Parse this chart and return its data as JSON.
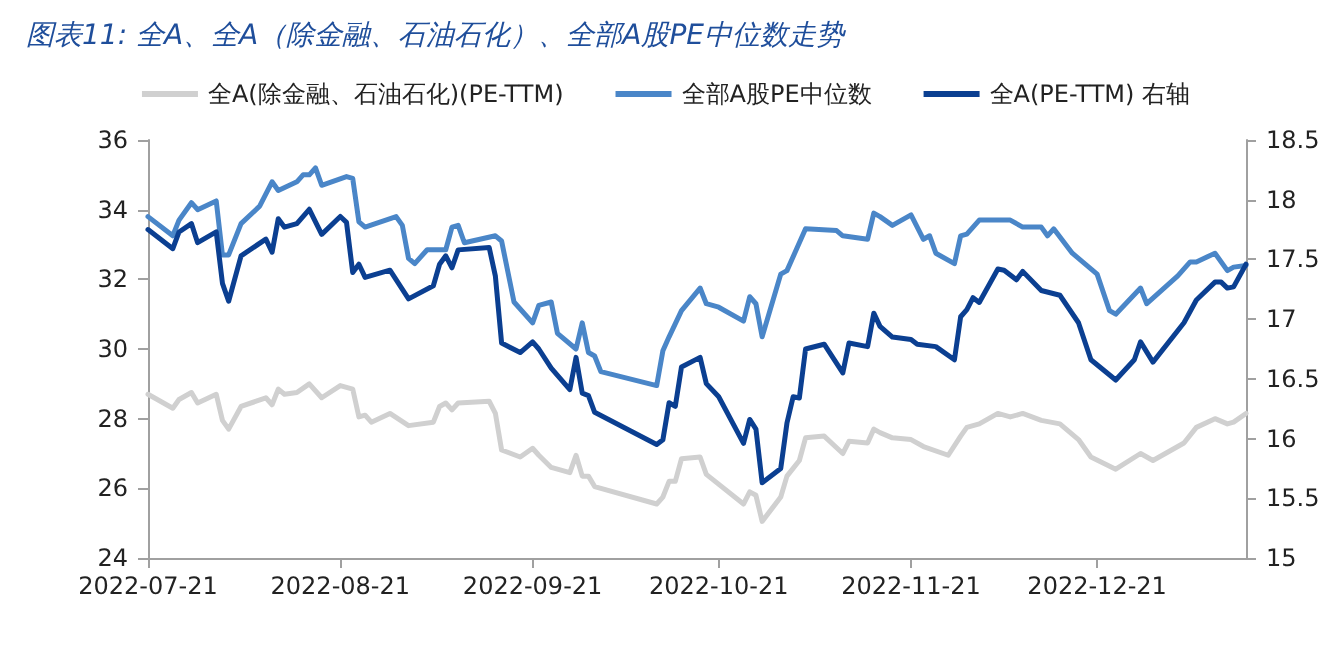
{
  "chart_data": {
    "type": "line",
    "title": "图表11: 全A、全A（除金融、石油石化）、全部A股PE中位数走势",
    "xlim": [
      "2022-07-21",
      "2023-01-14"
    ],
    "xticks": [
      "2022-07-21",
      "2022-08-21",
      "2022-09-21",
      "2022-10-21",
      "2022-11-21",
      "2022-12-21"
    ],
    "ylim": [
      24,
      36
    ],
    "yticks": [
      24,
      26,
      28,
      30,
      32,
      34,
      36
    ],
    "y2lim": [
      15,
      18.5
    ],
    "y2ticks": [
      15,
      15.5,
      16,
      16.5,
      17,
      17.5,
      18,
      18.5
    ],
    "grid": false,
    "legend": "top",
    "marker": "none",
    "line_style": "solid",
    "series": [
      {
        "name": "全A(除金融、石油石化)(PE-TTM)",
        "color": "#d0d0d0",
        "x": [
          "2022-07-21",
          "2022-07-25",
          "2022-07-26",
          "2022-07-28",
          "2022-07-29",
          "2022-08-01",
          "2022-08-02",
          "2022-08-03",
          "2022-08-05",
          "2022-08-09",
          "2022-08-10",
          "2022-08-11",
          "2022-08-12",
          "2022-08-14",
          "2022-08-16",
          "2022-08-18",
          "2022-08-21",
          "2022-08-23",
          "2022-08-24",
          "2022-08-25",
          "2022-08-26",
          "2022-08-29",
          "2022-09-01",
          "2022-09-05",
          "2022-09-06",
          "2022-09-07",
          "2022-09-08",
          "2022-09-09",
          "2022-09-14",
          "2022-09-15",
          "2022-09-16",
          "2022-09-19",
          "2022-09-21",
          "2022-09-22",
          "2022-09-24",
          "2022-09-27",
          "2022-09-28",
          "2022-09-29",
          "2022-09-30",
          "2022-10-01",
          "2022-10-11",
          "2022-10-12",
          "2022-10-13",
          "2022-10-14",
          "2022-10-15",
          "2022-10-18",
          "2022-10-19",
          "2022-10-25",
          "2022-10-26",
          "2022-10-27",
          "2022-10-28",
          "2022-10-31",
          "2022-11-01",
          "2022-11-03",
          "2022-11-04",
          "2022-11-07",
          "2022-11-10",
          "2022-11-11",
          "2022-11-14",
          "2022-11-15",
          "2022-11-16",
          "2022-11-18",
          "2022-11-21",
          "2022-11-23",
          "2022-11-27",
          "2022-11-29",
          "2022-11-30",
          "2022-12-02",
          "2022-12-05",
          "2022-12-07",
          "2022-12-09",
          "2022-12-12",
          "2022-12-15",
          "2022-12-18",
          "2022-12-20",
          "2022-12-24",
          "2022-12-28",
          "2022-12-30",
          "2023-01-04",
          "2023-01-06",
          "2023-01-09",
          "2023-01-11",
          "2023-01-12",
          "2023-01-14"
        ],
        "values": [
          28.7,
          28.3,
          28.55,
          28.75,
          28.45,
          28.7,
          27.95,
          27.7,
          28.35,
          28.6,
          28.4,
          28.85,
          28.7,
          28.75,
          29.0,
          28.6,
          28.95,
          28.85,
          28.05,
          28.1,
          27.9,
          28.15,
          27.8,
          27.9,
          28.35,
          28.45,
          28.25,
          28.45,
          28.5,
          28.15,
          27.1,
          26.9,
          27.15,
          26.95,
          26.6,
          26.45,
          26.95,
          26.35,
          26.35,
          26.05,
          25.55,
          25.75,
          26.2,
          26.2,
          26.85,
          26.9,
          26.4,
          25.55,
          25.9,
          25.8,
          25.05,
          25.75,
          26.35,
          26.8,
          27.45,
          27.5,
          27.0,
          27.35,
          27.3,
          27.7,
          27.6,
          27.45,
          27.4,
          27.2,
          26.95,
          27.5,
          27.75,
          27.85,
          28.15,
          28.05,
          28.15,
          27.95,
          27.85,
          27.4,
          26.9,
          26.55,
          27.0,
          26.8,
          27.3,
          27.75,
          28.0,
          27.85,
          27.9,
          28.15
        ]
      },
      {
        "name": "全部A股PE中位数",
        "color": "#4a86c8",
        "x": [
          "2022-07-21",
          "2022-07-25",
          "2022-07-26",
          "2022-07-28",
          "2022-07-29",
          "2022-08-01",
          "2022-08-02",
          "2022-08-03",
          "2022-08-05",
          "2022-08-08",
          "2022-08-10",
          "2022-08-11",
          "2022-08-14",
          "2022-08-15",
          "2022-08-16",
          "2022-08-17",
          "2022-08-18",
          "2022-08-22",
          "2022-08-23",
          "2022-08-24",
          "2022-08-25",
          "2022-08-30",
          "2022-08-31",
          "2022-09-01",
          "2022-09-02",
          "2022-09-04",
          "2022-09-07",
          "2022-09-08",
          "2022-09-09",
          "2022-09-10",
          "2022-09-15",
          "2022-09-16",
          "2022-09-18",
          "2022-09-21",
          "2022-09-22",
          "2022-09-24",
          "2022-09-25",
          "2022-09-28",
          "2022-09-29",
          "2022-09-30",
          "2022-10-01",
          "2022-10-02",
          "2022-10-11",
          "2022-10-12",
          "2022-10-13",
          "2022-10-15",
          "2022-10-18",
          "2022-10-19",
          "2022-10-21",
          "2022-10-25",
          "2022-10-26",
          "2022-10-27",
          "2022-10-28",
          "2022-10-31",
          "2022-11-01",
          "2022-11-04",
          "2022-11-09",
          "2022-11-10",
          "2022-11-14",
          "2022-11-15",
          "2022-11-16",
          "2022-11-18",
          "2022-11-21",
          "2022-11-23",
          "2022-11-24",
          "2022-11-25",
          "2022-11-28",
          "2022-11-29",
          "2022-11-30",
          "2022-12-02",
          "2022-12-07",
          "2022-12-09",
          "2022-12-12",
          "2022-12-13",
          "2022-12-14",
          "2022-12-17",
          "2022-12-21",
          "2022-12-23",
          "2022-12-24",
          "2022-12-28",
          "2022-12-29",
          "2023-01-03",
          "2023-01-05",
          "2023-01-06",
          "2023-01-09",
          "2023-01-11",
          "2023-01-12",
          "2023-01-14"
        ],
        "values": [
          33.8,
          33.25,
          33.7,
          34.2,
          34.0,
          34.25,
          32.7,
          32.7,
          33.6,
          34.1,
          34.8,
          34.55,
          34.8,
          35.0,
          35.0,
          35.2,
          34.7,
          34.95,
          34.9,
          33.65,
          33.5,
          33.8,
          33.55,
          32.6,
          32.45,
          32.85,
          32.85,
          33.5,
          33.55,
          33.05,
          33.25,
          33.1,
          31.35,
          30.75,
          31.25,
          31.35,
          30.45,
          30.0,
          30.75,
          29.9,
          29.8,
          29.35,
          28.95,
          29.95,
          30.35,
          31.1,
          31.75,
          31.3,
          31.2,
          30.8,
          31.5,
          31.3,
          30.35,
          32.15,
          32.25,
          33.45,
          33.4,
          33.25,
          33.15,
          33.9,
          33.8,
          33.55,
          33.85,
          33.15,
          33.25,
          32.75,
          32.45,
          33.25,
          33.3,
          33.7,
          33.7,
          33.5,
          33.5,
          33.25,
          33.45,
          32.75,
          32.15,
          31.1,
          31.0,
          31.75,
          31.3,
          32.1,
          32.5,
          32.5,
          32.75,
          32.25,
          32.35,
          32.4
        ]
      },
      {
        "name": "全A(PE-TTM) 右轴",
        "color": "#0b3f91",
        "axis": "y2",
        "x": [
          "2022-07-21",
          "2022-07-25",
          "2022-07-26",
          "2022-07-28",
          "2022-07-29",
          "2022-08-01",
          "2022-08-02",
          "2022-08-03",
          "2022-08-05",
          "2022-08-09",
          "2022-08-10",
          "2022-08-11",
          "2022-08-12",
          "2022-08-14",
          "2022-08-16",
          "2022-08-18",
          "2022-08-21",
          "2022-08-22",
          "2022-08-23",
          "2022-08-24",
          "2022-08-25",
          "2022-08-29",
          "2022-09-01",
          "2022-09-05",
          "2022-09-06",
          "2022-09-07",
          "2022-09-08",
          "2022-09-09",
          "2022-09-14",
          "2022-09-15",
          "2022-09-16",
          "2022-09-19",
          "2022-09-21",
          "2022-09-22",
          "2022-09-24",
          "2022-09-27",
          "2022-09-28",
          "2022-09-29",
          "2022-09-30",
          "2022-10-01",
          "2022-10-11",
          "2022-10-12",
          "2022-10-13",
          "2022-10-14",
          "2022-10-15",
          "2022-10-18",
          "2022-10-19",
          "2022-10-21",
          "2022-10-25",
          "2022-10-26",
          "2022-10-27",
          "2022-10-28",
          "2022-10-31",
          "2022-11-01",
          "2022-11-02",
          "2022-11-03",
          "2022-11-04",
          "2022-11-07",
          "2022-11-10",
          "2022-11-11",
          "2022-11-14",
          "2022-11-15",
          "2022-11-16",
          "2022-11-18",
          "2022-11-21",
          "2022-11-22",
          "2022-11-25",
          "2022-11-28",
          "2022-11-29",
          "2022-11-30",
          "2022-12-01",
          "2022-12-02",
          "2022-12-05",
          "2022-12-06",
          "2022-12-08",
          "2022-12-09",
          "2022-12-12",
          "2022-12-15",
          "2022-12-18",
          "2022-12-20",
          "2022-12-24",
          "2022-12-27",
          "2022-12-28",
          "2022-12-30",
          "2023-01-04",
          "2023-01-06",
          "2023-01-09",
          "2023-01-10",
          "2023-01-11",
          "2023-01-12",
          "2023-01-14"
        ],
        "values": [
          17.75,
          17.59,
          17.73,
          17.8,
          17.64,
          17.73,
          17.3,
          17.15,
          17.53,
          17.67,
          17.56,
          17.84,
          17.77,
          17.8,
          17.92,
          17.71,
          17.86,
          17.81,
          17.39,
          17.46,
          17.35,
          17.41,
          17.17,
          17.28,
          17.46,
          17.53,
          17.43,
          17.58,
          17.6,
          17.36,
          16.8,
          16.72,
          16.81,
          16.75,
          16.59,
          16.41,
          16.68,
          16.38,
          16.36,
          16.22,
          15.95,
          15.99,
          16.3,
          16.27,
          16.6,
          16.68,
          16.46,
          16.35,
          15.96,
          16.16,
          16.08,
          15.63,
          15.75,
          16.13,
          16.35,
          16.34,
          16.75,
          16.79,
          16.55,
          16.8,
          16.77,
          17.05,
          16.94,
          16.85,
          16.83,
          16.79,
          16.77,
          16.66,
          17.02,
          17.08,
          17.18,
          17.14,
          17.42,
          17.41,
          17.33,
          17.4,
          17.24,
          17.2,
          16.97,
          16.66,
          16.49,
          16.66,
          16.81,
          16.64,
          16.97,
          17.16,
          17.31,
          17.31,
          17.26,
          17.27,
          17.46
        ]
      }
    ]
  }
}
